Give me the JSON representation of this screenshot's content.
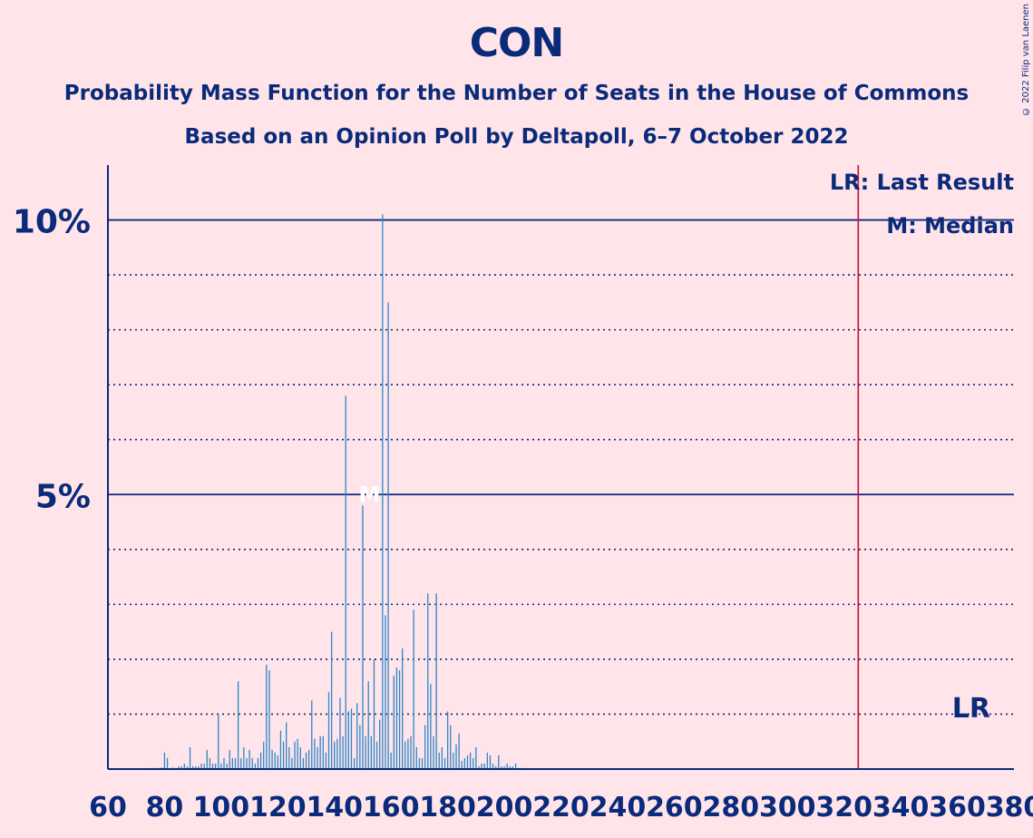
{
  "title": "CON",
  "subtitle1": "Probability Mass Function for the Number of Seats in the House of Commons",
  "subtitle2": "Based on an Opinion Poll by Deltapoll, 6–7 October 2022",
  "copyright": "© 2022 Filip van Laenen",
  "colors": {
    "background": "#FFE5EA",
    "text": "#0A2A7A",
    "bar": "#2E86C9",
    "last_result_line": "#C8102E"
  },
  "chart_data": {
    "type": "bar",
    "xlim": [
      60,
      380
    ],
    "ylim": [
      0,
      11
    ],
    "x_ticks": [
      60,
      80,
      100,
      120,
      140,
      160,
      180,
      200,
      220,
      240,
      260,
      280,
      300,
      320,
      340,
      360,
      380
    ],
    "y_ticks": [
      {
        "value": 5,
        "label": "5%"
      },
      {
        "value": 10,
        "label": "10%"
      }
    ],
    "minor_gridlines": [
      1,
      2,
      3,
      4,
      6,
      7,
      8,
      9
    ],
    "last_result": 325,
    "median": 154,
    "legend": [
      "LR: Last Result",
      "M: Median"
    ],
    "lr_label": "LR",
    "median_label": "M",
    "x": [
      65,
      66,
      67,
      68,
      69,
      70,
      71,
      72,
      73,
      74,
      75,
      76,
      77,
      78,
      79,
      80,
      81,
      82,
      83,
      84,
      85,
      86,
      87,
      88,
      89,
      90,
      91,
      92,
      93,
      94,
      95,
      96,
      97,
      98,
      99,
      100,
      101,
      102,
      103,
      104,
      105,
      106,
      107,
      108,
      109,
      110,
      111,
      112,
      113,
      114,
      115,
      116,
      117,
      118,
      119,
      120,
      121,
      122,
      123,
      124,
      125,
      126,
      127,
      128,
      129,
      130,
      131,
      132,
      133,
      134,
      135,
      136,
      137,
      138,
      139,
      140,
      141,
      142,
      143,
      144,
      145,
      146,
      147,
      148,
      149,
      150,
      151,
      152,
      153,
      154,
      155,
      156,
      157,
      158,
      159,
      160,
      161,
      162,
      163,
      164,
      165,
      166,
      167,
      168,
      169,
      170,
      171,
      172,
      173,
      174,
      175,
      176,
      177,
      178,
      179,
      180,
      181,
      182,
      183,
      184,
      185,
      186,
      187,
      188,
      189,
      190,
      191,
      192,
      193,
      194,
      195,
      196,
      197,
      198,
      199,
      200,
      201,
      202,
      203,
      204,
      205,
      206,
      207,
      208,
      209,
      210
    ],
    "values": [
      0.01,
      0.01,
      0.01,
      0.01,
      0.01,
      0.01,
      0.01,
      0.01,
      0.01,
      0.01,
      0.02,
      0.02,
      0.02,
      0.02,
      0.03,
      0.3,
      0.2,
      0.02,
      0.03,
      0.02,
      0.05,
      0.05,
      0.1,
      0.05,
      0.4,
      0.05,
      0.05,
      0.05,
      0.1,
      0.1,
      0.35,
      0.2,
      0.1,
      0.1,
      1.0,
      0.1,
      0.2,
      0.1,
      0.35,
      0.2,
      0.2,
      1.6,
      0.2,
      0.4,
      0.2,
      0.35,
      0.2,
      0.1,
      0.2,
      0.3,
      0.5,
      1.9,
      1.8,
      0.35,
      0.3,
      0.25,
      0.7,
      0.5,
      0.85,
      0.4,
      0.2,
      0.5,
      0.55,
      0.4,
      0.2,
      0.3,
      0.35,
      1.25,
      0.55,
      0.4,
      0.6,
      0.6,
      0.3,
      1.4,
      2.5,
      0.5,
      0.55,
      1.3,
      0.6,
      6.8,
      1.05,
      1.1,
      0.2,
      1.2,
      0.8,
      4.8,
      0.6,
      1.6,
      0.6,
      2.0,
      0.5,
      0.9,
      10.1,
      2.8,
      8.5,
      0.3,
      1.7,
      1.85,
      1.8,
      2.2,
      0.5,
      0.55,
      0.6,
      2.9,
      0.4,
      0.2,
      0.2,
      0.8,
      3.2,
      1.55,
      0.6,
      3.2,
      0.3,
      0.4,
      0.2,
      1.05,
      0.8,
      0.3,
      0.45,
      0.65,
      0.15,
      0.2,
      0.25,
      0.3,
      0.2,
      0.4,
      0.05,
      0.1,
      0.1,
      0.3,
      0.25,
      0.1,
      0.05,
      0.25,
      0.05,
      0.05,
      0.1,
      0.05,
      0.05,
      0.1,
      0.02,
      0.02,
      0.02,
      0.01,
      0.01,
      0.01
    ]
  }
}
